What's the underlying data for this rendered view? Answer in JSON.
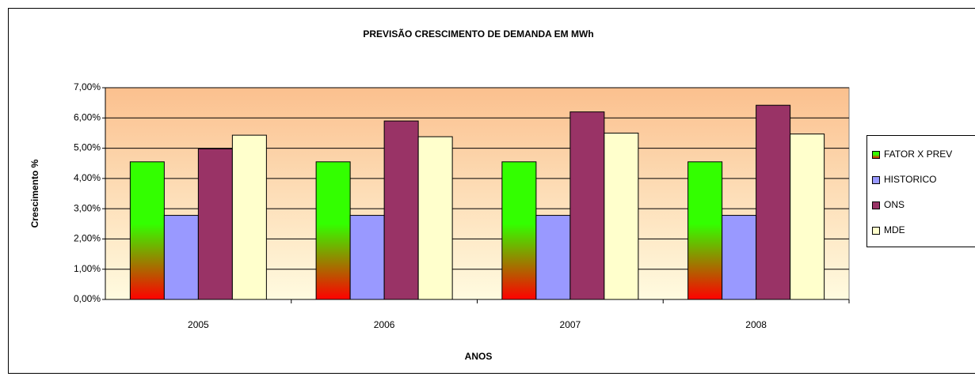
{
  "chart_data": {
    "type": "bar",
    "title": "PREVISÃO CRESCIMENTO DE DEMANDA EM MWh",
    "x_label": "ANOS",
    "y_label": "Crescimento %",
    "categories": [
      "2005",
      "2006",
      "2007",
      "2008"
    ],
    "series": [
      {
        "name": "FATOR X PREV",
        "color": "#33ff00",
        "values": [
          4.55,
          4.55,
          4.55,
          4.55
        ]
      },
      {
        "name": "HISTORICO",
        "color": "#9999ff",
        "values": [
          2.78,
          2.78,
          2.78,
          2.78
        ]
      },
      {
        "name": "ONS",
        "color": "#993366",
        "values": [
          4.98,
          5.9,
          6.2,
          6.42
        ]
      },
      {
        "name": "MDE",
        "color": "#ffffcc",
        "values": [
          5.43,
          5.38,
          5.5,
          5.47
        ]
      }
    ],
    "ylim": [
      0,
      7
    ],
    "yticks": [
      {
        "value": 0,
        "label": "0,00%"
      },
      {
        "value": 1,
        "label": "1,00%"
      },
      {
        "value": 2,
        "label": "2,00%"
      },
      {
        "value": 3,
        "label": "3,00%"
      },
      {
        "value": 4,
        "label": "4,00%"
      },
      {
        "value": 5,
        "label": "5,00%"
      },
      {
        "value": 6,
        "label": "6,00%"
      },
      {
        "value": 7,
        "label": "7,00%"
      }
    ],
    "grid": true,
    "legend": "right"
  }
}
